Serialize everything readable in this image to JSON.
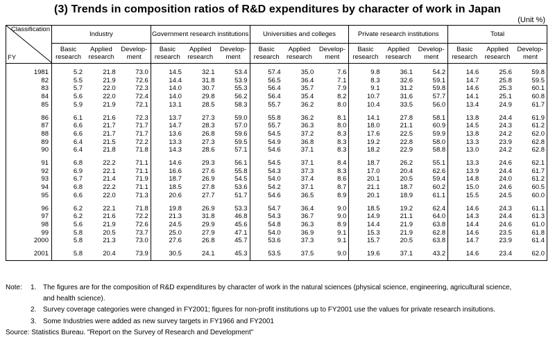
{
  "title": "(3) Trends in composition ratios of R&D expenditures by character of work in Japan",
  "unit": "(Unit %)",
  "header": {
    "classification": "Classification",
    "fy": "FY",
    "groups": [
      "Industry",
      "Government research institutions",
      "Universities and colleges",
      "Private research institutions",
      "Total"
    ],
    "sub": [
      "Basic research",
      "Applied research",
      "Develop-ment"
    ]
  },
  "blocks": [
    [
      {
        "fy": "1981",
        "v": [
          "5.2",
          "21.8",
          "73.0",
          "14.5",
          "32.1",
          "53.4",
          "57.4",
          "35.0",
          "7.6",
          "9.8",
          "36.1",
          "54.2",
          "14.6",
          "25.6",
          "59.8"
        ]
      },
      {
        "fy": "82",
        "v": [
          "5.5",
          "21.9",
          "72.6",
          "14.4",
          "31.8",
          "53.9",
          "56.5",
          "36.4",
          "7.1",
          "8.3",
          "32.6",
          "59.1",
          "14.7",
          "25.8",
          "59.5"
        ]
      },
      {
        "fy": "83",
        "v": [
          "5.7",
          "22.0",
          "72.3",
          "14.0",
          "30.7",
          "55.3",
          "56.4",
          "35.7",
          "7.9",
          "9.1",
          "31.2",
          "59.8",
          "14.6",
          "25.3",
          "60.1"
        ]
      },
      {
        "fy": "84",
        "v": [
          "5.6",
          "22.0",
          "72.4",
          "14.0",
          "29.8",
          "56.2",
          "56.4",
          "35.4",
          "8.2",
          "10.7",
          "31.6",
          "57.7",
          "14.1",
          "25.1",
          "60.8"
        ]
      },
      {
        "fy": "85",
        "v": [
          "5.9",
          "21.9",
          "72.1",
          "13.1",
          "28.5",
          "58.3",
          "55.7",
          "36.2",
          "8.0",
          "10.4",
          "33.5",
          "56.0",
          "13.4",
          "24.9",
          "61.7"
        ]
      }
    ],
    [
      {
        "fy": "86",
        "v": [
          "6.1",
          "21.6",
          "72.3",
          "13.7",
          "27.3",
          "59.0",
          "55.8",
          "36.2",
          "8.1",
          "14.1",
          "27.8",
          "58.1",
          "13.8",
          "24.4",
          "61.9"
        ]
      },
      {
        "fy": "87",
        "v": [
          "6.6",
          "21.7",
          "71.7",
          "14.7",
          "28.3",
          "57.0",
          "55.7",
          "36.3",
          "8.0",
          "18.0",
          "21.1",
          "60.9",
          "14.5",
          "24.3",
          "61.2"
        ]
      },
      {
        "fy": "88",
        "v": [
          "6.6",
          "21.7",
          "71.7",
          "13.6",
          "26.8",
          "59.6",
          "54.5",
          "37.2",
          "8.3",
          "17.6",
          "22.5",
          "59.9",
          "13.8",
          "24.2",
          "62.0"
        ]
      },
      {
        "fy": "89",
        "v": [
          "6.4",
          "21.5",
          "72.2",
          "13.3",
          "27.3",
          "59.5",
          "54.9",
          "36.8",
          "8.3",
          "19.2",
          "22.8",
          "58.0",
          "13.3",
          "23.9",
          "62.8"
        ]
      },
      {
        "fy": "90",
        "v": [
          "6.4",
          "21.8",
          "71.8",
          "14.3",
          "28.6",
          "57.1",
          "54.6",
          "37.1",
          "8.3",
          "18.2",
          "22.9",
          "58.8",
          "13.0",
          "24.2",
          "62.8"
        ]
      }
    ],
    [
      {
        "fy": "91",
        "v": [
          "6.8",
          "22.2",
          "71.1",
          "14.6",
          "29.3",
          "56.1",
          "54.5",
          "37.1",
          "8.4",
          "18.7",
          "26.2",
          "55.1",
          "13.3",
          "24.6",
          "62.1"
        ]
      },
      {
        "fy": "92",
        "v": [
          "6.9",
          "22.1",
          "71.1",
          "16.6",
          "27.6",
          "55.8",
          "54.3",
          "37.3",
          "8.3",
          "17.0",
          "20.4",
          "62.6",
          "13.9",
          "24.4",
          "61.7"
        ]
      },
      {
        "fy": "93",
        "v": [
          "6.7",
          "21.4",
          "71.9",
          "18.7",
          "26.9",
          "54.5",
          "54.0",
          "37.4",
          "8.6",
          "20.1",
          "20.5",
          "59.4",
          "14.8",
          "24.0",
          "61.2"
        ]
      },
      {
        "fy": "94",
        "v": [
          "6.8",
          "22.2",
          "71.1",
          "18.5",
          "27.8",
          "53.6",
          "54.2",
          "37.1",
          "8.7",
          "21.1",
          "18.7",
          "60.2",
          "15.0",
          "24.6",
          "60.5"
        ]
      },
      {
        "fy": "95",
        "v": [
          "6.6",
          "22.0",
          "71.3",
          "20.6",
          "27.7",
          "51.7",
          "54.6",
          "36.5",
          "8.9",
          "20.1",
          "18.9",
          "61.1",
          "15.5",
          "24.5",
          "60.0"
        ]
      }
    ],
    [
      {
        "fy": "96",
        "v": [
          "6.2",
          "22.1",
          "71.8",
          "19.8",
          "26.9",
          "53.3",
          "54.7",
          "36.4",
          "9.0",
          "18.5",
          "19.2",
          "62.4",
          "14.6",
          "24.3",
          "61.1"
        ]
      },
      {
        "fy": "97",
        "v": [
          "6.2",
          "21.6",
          "72.2",
          "21.3",
          "31.8",
          "46.8",
          "54.3",
          "36.7",
          "9.0",
          "14.9",
          "21.1",
          "64.0",
          "14.3",
          "24.4",
          "61.3"
        ]
      },
      {
        "fy": "98",
        "v": [
          "5.6",
          "21.9",
          "72.6",
          "24.5",
          "29.9",
          "45.6",
          "54.8",
          "36.3",
          "8.9",
          "14.4",
          "21.9",
          "63.8",
          "14.4",
          "24.6",
          "61.0"
        ]
      },
      {
        "fy": "99",
        "v": [
          "5.8",
          "20.5",
          "73.7",
          "25.0",
          "27.9",
          "47.1",
          "54.0",
          "36.9",
          "9.1",
          "15.3",
          "21.9",
          "62.8",
          "14.6",
          "23.5",
          "61.8"
        ]
      },
      {
        "fy": "2000",
        "v": [
          "5.8",
          "21.3",
          "73.0",
          "27.6",
          "26.8",
          "45.7",
          "53.6",
          "37.3",
          "9.1",
          "15.7",
          "20.5",
          "63.8",
          "14.7",
          "23.9",
          "61.4"
        ]
      }
    ],
    [
      {
        "fy": "2001",
        "v": [
          "5.8",
          "20.4",
          "73.9",
          "30.5",
          "24.1",
          "45.3",
          "53.5",
          "37.5",
          "9.0",
          "19.6",
          "37.1",
          "43.2",
          "14.6",
          "23.4",
          "62.0"
        ]
      }
    ]
  ],
  "notes": {
    "lead": "Note:",
    "items": [
      {
        "num": "1.",
        "text": "The figures are for the composition of R&D expenditures by character of work in the natural sciences (physical science, engineering, agricultural science,",
        "cont": "and health science)."
      },
      {
        "num": "2.",
        "text": "Survey coverage categories were changed in FY2001; figures for non-profit institutions up to FY2001 use the values for private research insitutions."
      },
      {
        "num": "3.",
        "text": "Some Industries were added as new survey targets in FY1966 and FY2001"
      }
    ],
    "source": "Source: Statistics Bureau. \"Report on the Survey of Research and Development\""
  }
}
